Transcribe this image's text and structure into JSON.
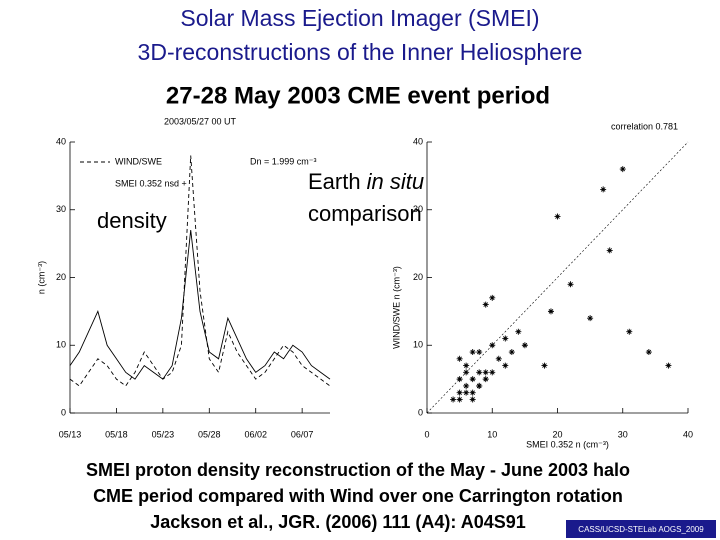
{
  "title": [
    "Solar Mass Ejection Imager (SMEI)",
    "3D-reconstructions of the Inner Heliosphere"
  ],
  "subtitle": "27-28 May 2003 CME event period",
  "labels": {
    "density": "density",
    "earth": "Earth",
    "insitu": "in situ",
    "comparison": "comparison"
  },
  "caption": [
    "SMEI proton density reconstruction of the May - June 2003 halo",
    "CME period compared with Wind over one Carrington rotation",
    "Jackson et al., JGR. (2006) 111 (A4): A04S91"
  ],
  "footer": "CASS/UCSD-STELab AOGS_2009",
  "chart_data": [
    {
      "type": "line",
      "title": "2003/05/27 00 UT",
      "annotation": "Dn = 1.999 cm⁻³",
      "ylabel": "n (cm⁻³)",
      "x": [
        0,
        1,
        2,
        3,
        4,
        5,
        6,
        7,
        8,
        9,
        10,
        11,
        12,
        13,
        14,
        15,
        16,
        17,
        18,
        19,
        20,
        21,
        22,
        23,
        24,
        25,
        26,
        27,
        28
      ],
      "xlim": [
        0,
        28
      ],
      "xticks": [
        {
          "value": 0,
          "label": "05/13"
        },
        {
          "value": 5,
          "label": "05/18"
        },
        {
          "value": 10,
          "label": "05/23"
        },
        {
          "value": 15,
          "label": "05/28"
        },
        {
          "value": 20,
          "label": "06/02"
        },
        {
          "value": 25,
          "label": "06/07"
        }
      ],
      "ylim": [
        0,
        40
      ],
      "yticks": [
        0,
        10,
        20,
        30,
        40
      ],
      "series": [
        {
          "name": "WIND/SWE",
          "color": "#000000",
          "dash": true,
          "values": [
            5,
            4,
            6,
            8,
            7,
            5,
            4,
            6,
            9,
            7,
            5,
            6,
            10,
            38,
            18,
            8,
            6,
            12,
            9,
            7,
            5,
            6,
            8,
            10,
            9,
            7,
            6,
            5,
            4
          ]
        },
        {
          "name": "SMEI 0.352 nsd +",
          "color": "#000000",
          "dash": false,
          "values": [
            7,
            9,
            12,
            15,
            10,
            8,
            6,
            5,
            7,
            6,
            5,
            7,
            14,
            27,
            15,
            9,
            8,
            14,
            11,
            8,
            6,
            7,
            9,
            8,
            10,
            9,
            7,
            6,
            5
          ]
        }
      ]
    },
    {
      "type": "scatter",
      "annotation": "correlation 0.781",
      "xlabel": "SMEI 0.352 n (cm⁻³)",
      "ylabel": "WIND/SWE n (cm⁻³)",
      "color": "#000000",
      "xlim": [
        0,
        40
      ],
      "xticks": [
        0,
        10,
        20,
        30,
        40
      ],
      "ylim": [
        0,
        40
      ],
      "yticks": [
        0,
        10,
        20,
        30,
        40
      ],
      "x": [
        30,
        27,
        20,
        28,
        22,
        19,
        25,
        34,
        31,
        37,
        10,
        9,
        14,
        18,
        5,
        6,
        7,
        8,
        9,
        6,
        5,
        7,
        8,
        10,
        11,
        12,
        4,
        5,
        6,
        7,
        8,
        9,
        6,
        7,
        5,
        8,
        10,
        13,
        15,
        12
      ],
      "y": [
        36,
        33,
        29,
        24,
        19,
        15,
        14,
        9,
        12,
        7,
        17,
        16,
        12,
        7,
        3,
        4,
        5,
        6,
        5,
        7,
        8,
        9,
        4,
        6,
        8,
        7,
        2,
        2,
        3,
        3,
        4,
        6,
        6,
        2,
        5,
        9,
        10,
        9,
        10,
        11
      ]
    }
  ]
}
